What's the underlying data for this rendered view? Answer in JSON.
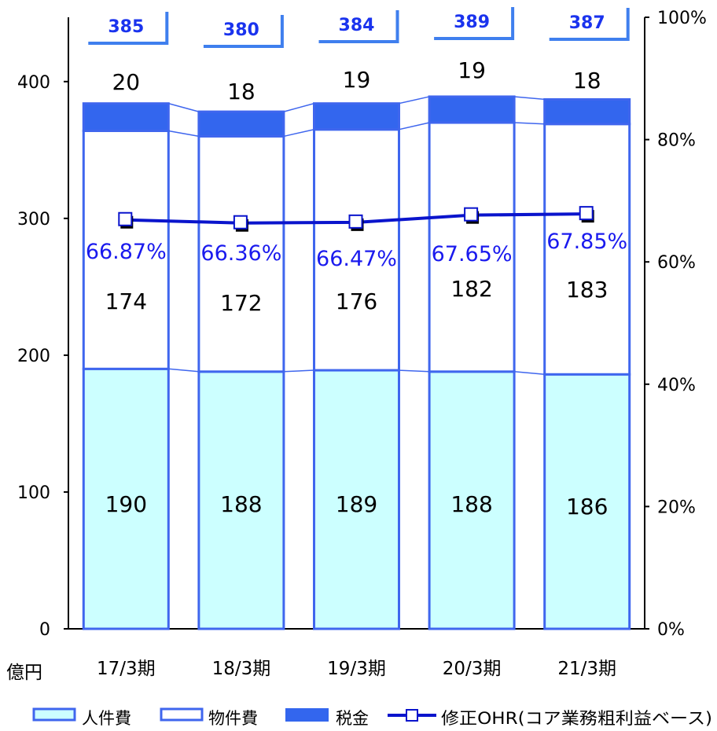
{
  "chart_data": {
    "type": "bar",
    "stacked": true,
    "categories": [
      "17/3期",
      "18/3期",
      "19/3期",
      "20/3期",
      "21/3期"
    ],
    "series": [
      {
        "name": "人件費",
        "values": [
          190,
          188,
          189,
          188,
          186
        ],
        "color": "#ccffff"
      },
      {
        "name": "物件費",
        "values": [
          174,
          172,
          176,
          182,
          183
        ],
        "color": "#ffffff"
      },
      {
        "name": "税金",
        "values": [
          20,
          18,
          19,
          19,
          18
        ],
        "color": "#3366ee"
      }
    ],
    "totals": [
      "385",
      "380",
      "384",
      "389",
      "387"
    ],
    "segment_labels": {
      "jinkenhi": [
        "190",
        "188",
        "189",
        "188",
        "186"
      ],
      "bukkenhi": [
        "174",
        "172",
        "176",
        "182",
        "183"
      ],
      "zeikin": [
        "20",
        "18",
        "19",
        "19",
        "18"
      ]
    },
    "line_series": {
      "name": "修正OHR(コア業務粗利益ベース)",
      "values": [
        66.87,
        66.36,
        66.47,
        67.65,
        67.85
      ],
      "labels": [
        "66.87%",
        "66.36%",
        "66.47%",
        "67.65%",
        "67.85%"
      ],
      "axis": "right",
      "color": "#0a14cc"
    },
    "y_left": {
      "unit_label": "億円",
      "range": [
        0,
        400
      ],
      "ticks": [
        "0",
        "100",
        "200",
        "300",
        "400"
      ]
    },
    "y_right": {
      "range": [
        0,
        100
      ],
      "ticks": [
        "0%",
        "20%",
        "40%",
        "60%",
        "80%",
        "100%"
      ]
    },
    "legend_position": "bottom",
    "grid": false
  },
  "legend": {
    "items": [
      {
        "label": "人件費",
        "swatch": "light"
      },
      {
        "label": "物件費",
        "swatch": "white"
      },
      {
        "label": "税金",
        "swatch": "solid"
      },
      {
        "label": "修正OHR(コア業務粗利益ベース)",
        "swatch": "line"
      }
    ]
  },
  "colors": {
    "bar_border": "#3f66ee",
    "jinkenhi": "#ccffff",
    "bukkenhi": "#ffffff",
    "zeikin": "#3366ee",
    "ohr_line": "#0a14cc",
    "ohr_text": "#1a1aee",
    "total_text": "#1a33ee"
  }
}
